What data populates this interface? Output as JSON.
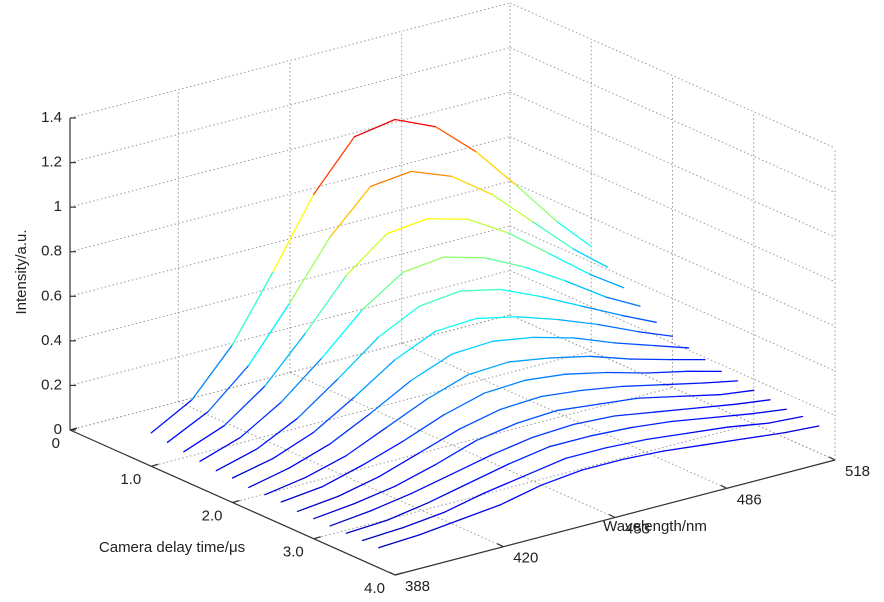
{
  "chart_data": {
    "type": "waterfall",
    "x_label": "Wavelength/nm",
    "y_label": "Camera delay time/μs",
    "z_label": "Intensity/a.u.",
    "colormap": "jet",
    "grid": true,
    "xlim": [
      388,
      518
    ],
    "xticks": [
      388,
      420,
      453,
      486,
      518
    ],
    "ylim": [
      0,
      4
    ],
    "yticks": [
      0,
      {
        "value": 1,
        "label": "1.0"
      },
      {
        "value": 2,
        "label": "2.0"
      },
      {
        "value": 3,
        "label": "3.0"
      },
      {
        "value": 4,
        "label": "4.0"
      }
    ],
    "zlim": [
      0,
      1.4
    ],
    "zticks": [
      0,
      0.2,
      0.4,
      0.6,
      0.8,
      1,
      1.2,
      1.4
    ],
    "x": [
      388,
      400,
      412,
      424,
      436,
      448,
      460,
      472,
      484,
      496,
      508,
      518
    ],
    "series": [
      {
        "delay": 1.0,
        "values": [
          0.15,
          0.25,
          0.45,
          0.73,
          1.03,
          1.24,
          1.27,
          1.19,
          1.03,
          0.83,
          0.62,
          0.47
        ]
      },
      {
        "delay": 1.2,
        "values": [
          0.14,
          0.23,
          0.39,
          0.62,
          0.87,
          1.05,
          1.07,
          1.0,
          0.87,
          0.7,
          0.53,
          0.41
        ]
      },
      {
        "delay": 1.4,
        "values": [
          0.13,
          0.2,
          0.33,
          0.52,
          0.73,
          0.87,
          0.89,
          0.84,
          0.73,
          0.59,
          0.45,
          0.35
        ]
      },
      {
        "delay": 1.6,
        "values": [
          0.12,
          0.18,
          0.29,
          0.44,
          0.61,
          0.73,
          0.75,
          0.7,
          0.61,
          0.5,
          0.38,
          0.3
        ]
      },
      {
        "delay": 1.8,
        "values": [
          0.11,
          0.16,
          0.25,
          0.38,
          0.52,
          0.61,
          0.63,
          0.59,
          0.51,
          0.42,
          0.33,
          0.26
        ]
      },
      {
        "delay": 2.0,
        "values": [
          0.11,
          0.15,
          0.22,
          0.33,
          0.45,
          0.53,
          0.54,
          0.5,
          0.44,
          0.37,
          0.29,
          0.23
        ]
      },
      {
        "delay": 2.2,
        "values": [
          0.1,
          0.14,
          0.2,
          0.29,
          0.39,
          0.46,
          0.47,
          0.44,
          0.39,
          0.32,
          0.26,
          0.21
        ]
      },
      {
        "delay": 2.4,
        "values": [
          0.1,
          0.13,
          0.18,
          0.26,
          0.34,
          0.4,
          0.41,
          0.38,
          0.34,
          0.28,
          0.23,
          0.19
        ]
      },
      {
        "delay": 2.6,
        "values": [
          0.1,
          0.12,
          0.17,
          0.23,
          0.3,
          0.35,
          0.36,
          0.34,
          0.3,
          0.25,
          0.21,
          0.17
        ]
      },
      {
        "delay": 2.8,
        "values": [
          0.09,
          0.11,
          0.15,
          0.21,
          0.27,
          0.31,
          0.32,
          0.3,
          0.27,
          0.23,
          0.19,
          0.16
        ]
      },
      {
        "delay": 3.0,
        "values": [
          0.09,
          0.11,
          0.14,
          0.19,
          0.25,
          0.28,
          0.29,
          0.27,
          0.25,
          0.21,
          0.17,
          0.15
        ]
      },
      {
        "delay": 3.2,
        "values": [
          0.09,
          0.11,
          0.14,
          0.18,
          0.22,
          0.25,
          0.26,
          0.25,
          0.22,
          0.19,
          0.16,
          0.14
        ]
      },
      {
        "delay": 3.4,
        "values": [
          0.09,
          0.1,
          0.13,
          0.17,
          0.21,
          0.24,
          0.24,
          0.23,
          0.21,
          0.18,
          0.15,
          0.13
        ]
      },
      {
        "delay": 3.6,
        "values": [
          0.09,
          0.1,
          0.12,
          0.16,
          0.19,
          0.22,
          0.22,
          0.21,
          0.19,
          0.17,
          0.14,
          0.13
        ]
      },
      {
        "delay": 3.8,
        "values": [
          0.09,
          0.1,
          0.12,
          0.14,
          0.18,
          0.2,
          0.2,
          0.19,
          0.17,
          0.15,
          0.13,
          0.12
        ]
      }
    ]
  }
}
